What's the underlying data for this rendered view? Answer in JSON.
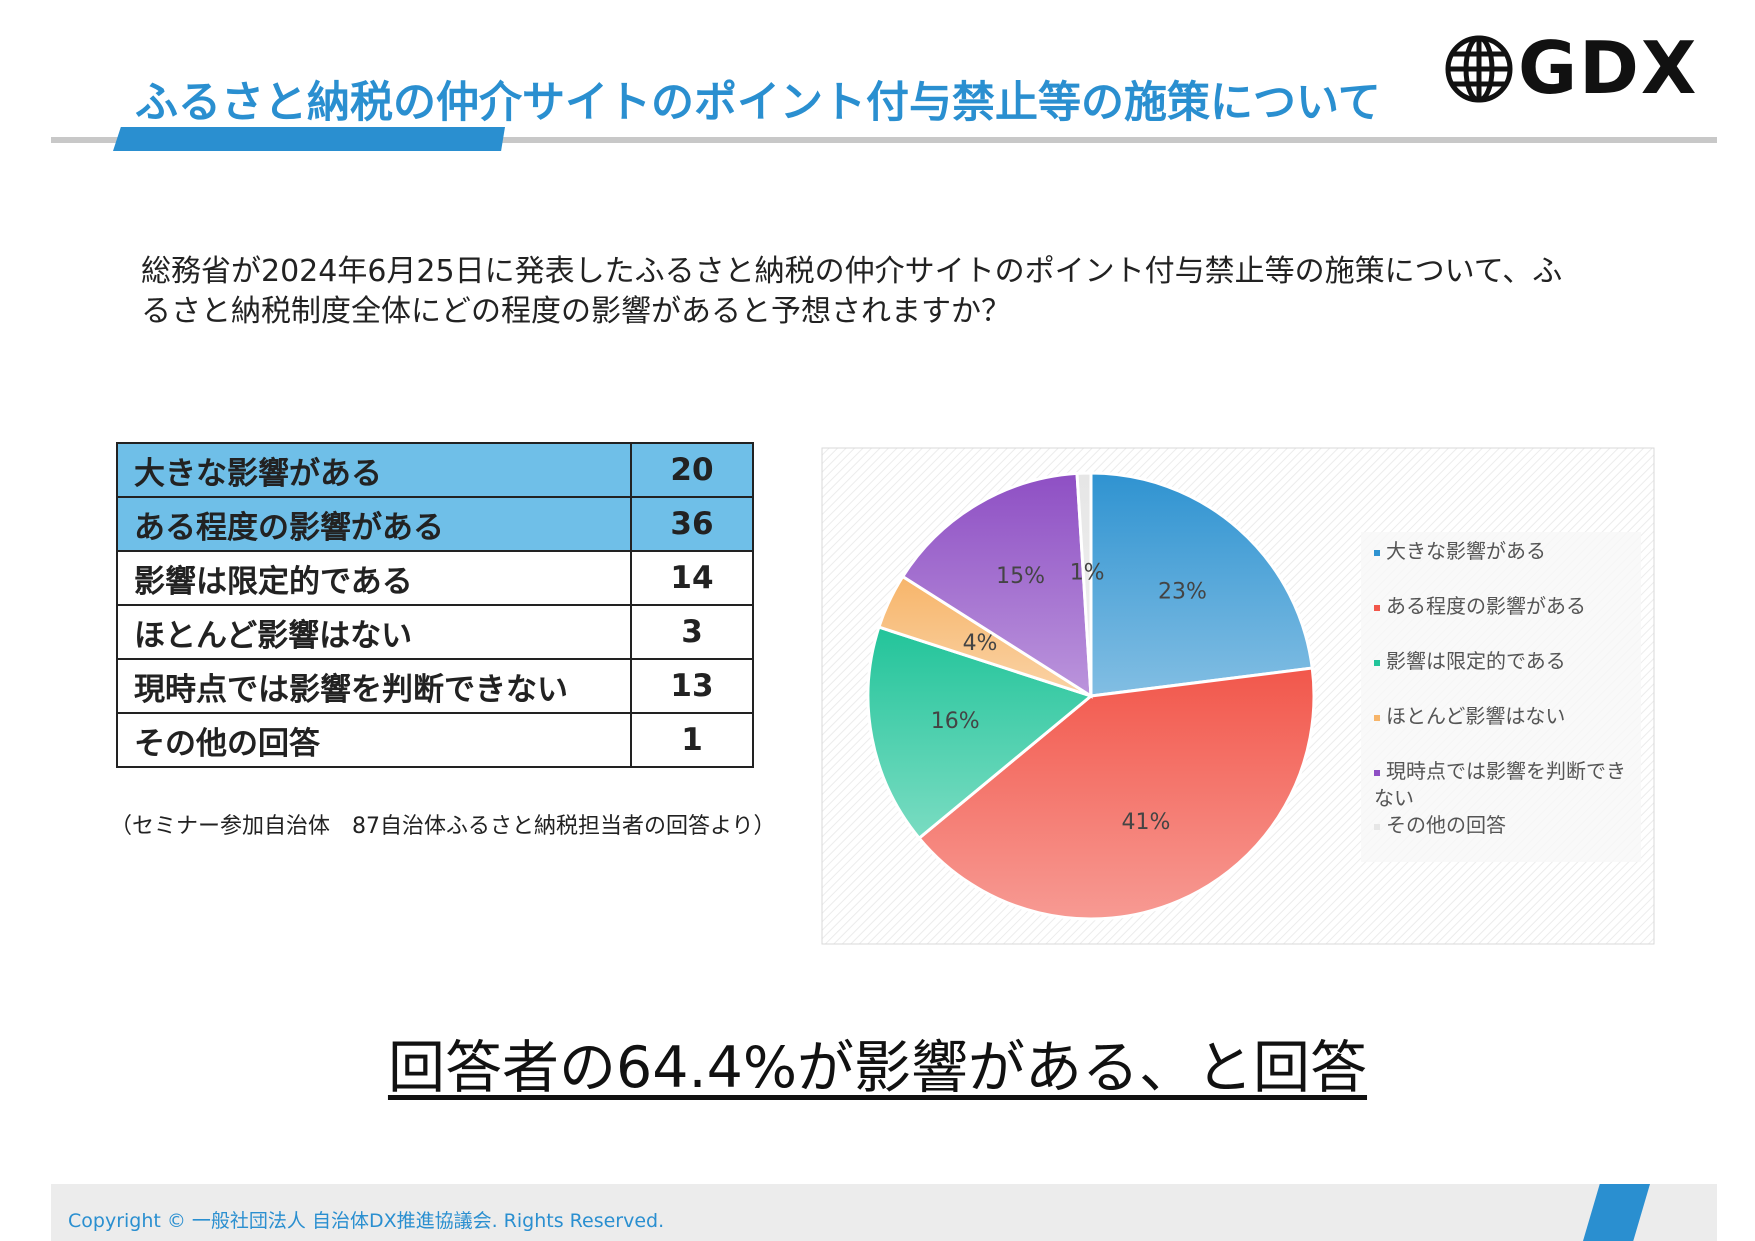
{
  "header": {
    "title": "ふるさと納税の仲介サイトのポイント付与禁止等の施策について",
    "logo": "GDX"
  },
  "question": "総務省が2024年6月25日に発表したふるさと納税の仲介サイトのポイント付与禁止等の施策について、ふるさと納税制度全体にどの程度の影響があると予想されますか？",
  "table": {
    "rows": [
      [
        "大きな影響がある",
        "20"
      ],
      [
        "ある程度の影響がある",
        "36"
      ],
      [
        "影響は限定的である",
        "14"
      ],
      [
        "ほとんど影響はない",
        "3"
      ],
      [
        "現時点では影響を判断できない",
        "13"
      ],
      [
        "その他の回答",
        "1"
      ]
    ]
  },
  "note": "（セミナー参加自治体　87自治体ふるさと納税担当者の回答より）",
  "chart_data": {
    "type": "pie",
    "categories": [
      "大きな影響がある",
      "ある程度の影響がある",
      "影響は限定的である",
      "ほとんど影響はない",
      "現時点では影響を判断できない",
      "その他の回答"
    ],
    "values": [
      23,
      41,
      16,
      4,
      15,
      1
    ],
    "value_labels": [
      "23%",
      "41%",
      "16%",
      "4%",
      "15%",
      "1%"
    ],
    "colors": [
      "#2f93d1",
      "#f2574b",
      "#22c49a",
      "#f7b56a",
      "#8e4fc4",
      "#e6e6e6"
    ],
    "legend": "right"
  },
  "conclusion": "回答者の64.4%が影響がある、と回答",
  "footer": "Copyright © 一般社団法人 自治体DX推進協議会. Rights Reserved."
}
